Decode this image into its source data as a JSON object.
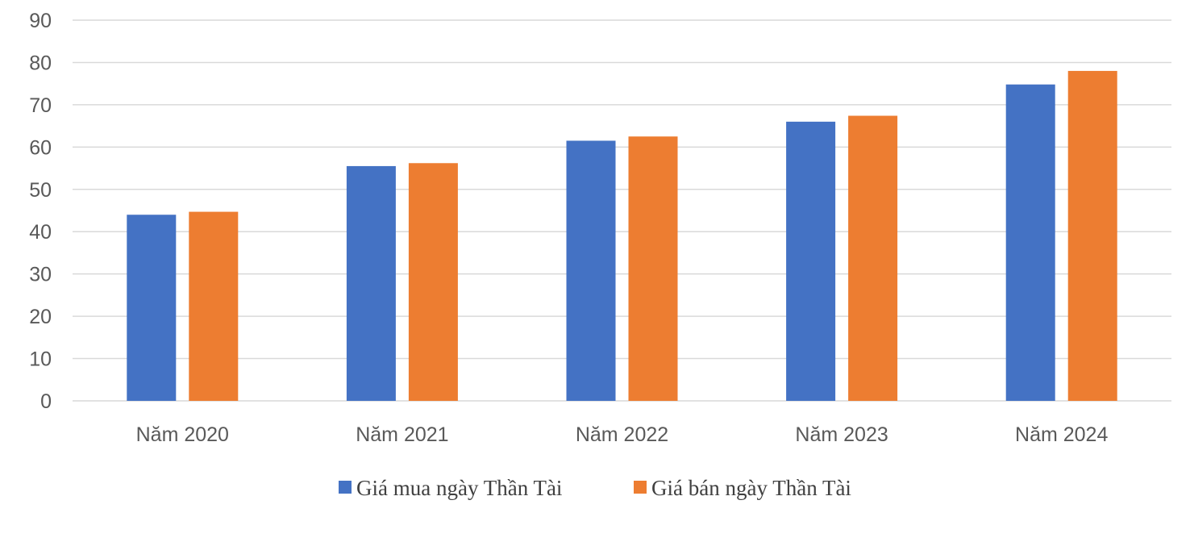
{
  "chart_data": {
    "type": "bar",
    "title": "",
    "xlabel": "",
    "ylabel": "",
    "ylim": [
      0,
      90
    ],
    "ytick_step": 10,
    "grid": true,
    "legend_position": "bottom",
    "categories": [
      "Năm 2020",
      "Năm 2021",
      "Năm 2022",
      "Năm 2023",
      "Năm 2024"
    ],
    "series": [
      {
        "name": "Giá mua ngày Thần Tài",
        "color": "#4472c4",
        "values": [
          44.0,
          55.5,
          61.5,
          66.0,
          74.8
        ]
      },
      {
        "name": "Giá bán ngày Thần Tài",
        "color": "#ed7d31",
        "values": [
          44.7,
          56.2,
          62.5,
          67.4,
          78.0
        ]
      }
    ]
  }
}
